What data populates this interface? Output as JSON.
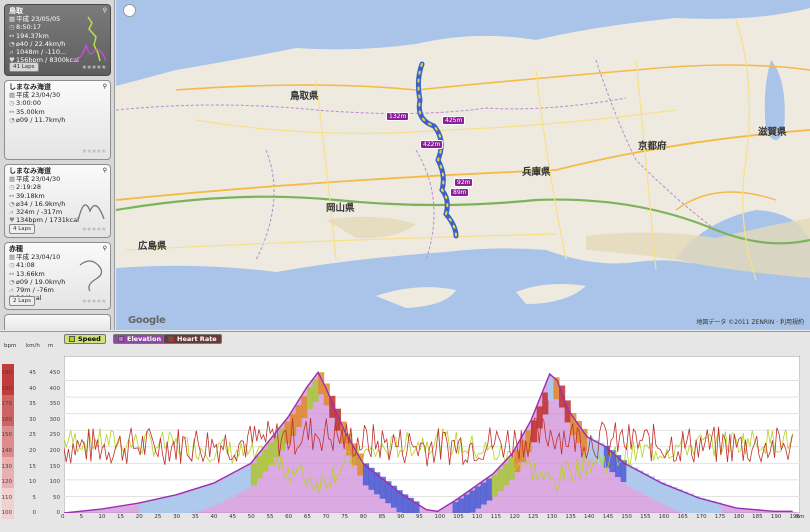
{
  "sidebar": {
    "cards": [
      {
        "title": "鳥取",
        "date": "平成 23/05/05",
        "time": "8:50:17",
        "distance": "194.37km",
        "speed": "⌀40 / 22.4km/h",
        "elevation": "1048m / -110...",
        "heart": "156bpm / 8300kcal",
        "laps": "41 Laps",
        "selected": true
      },
      {
        "title": "しまなみ海道",
        "date": "平成 23/04/30",
        "time": "3:00:00",
        "distance": "35.00km",
        "speed": "⌀09 / 11.7km/h"
      },
      {
        "title": "しまなみ海道",
        "date": "平成 23/04/30",
        "time": "2:19:28",
        "distance": "39.18km",
        "speed": "⌀34 / 16.9km/h",
        "elevation": "324m / -317m",
        "heart": "134bpm / 1731kcal",
        "laps": "4 Laps"
      },
      {
        "title": "赤穂",
        "date": "平成 23/04/10",
        "time": "41:08",
        "distance": "13.66km",
        "speed": "⌀09 / 19.0km/h",
        "elevation": "79m / -76m",
        "heart": "364kcal",
        "laps": "2 Laps"
      }
    ]
  },
  "map": {
    "prefectures": [
      "鳥取県",
      "岡山県",
      "兵庫県",
      "京都府",
      "広島県",
      "滋賀県"
    ],
    "markers": [
      "132m",
      "425m",
      "422m",
      "92m",
      "89m"
    ],
    "copyright": "©2011 ZENRIN · 利用規約",
    "logo": "Google",
    "zenrin_prefix": "地図データ"
  },
  "chart": {
    "legend": {
      "speed": "Speed",
      "elevation": "Elevation",
      "heart_rate": "Heart Rate"
    },
    "units": {
      "bpm": "bpm",
      "kmh": "km/h",
      "m": "m"
    },
    "bpm_ticks": [
      "190",
      "180",
      "170",
      "160",
      "150",
      "140",
      "130",
      "120",
      "110",
      "100"
    ],
    "kmh_ticks": [
      "45",
      "40",
      "35",
      "30",
      "25",
      "20",
      "15",
      "10",
      "5",
      "0"
    ],
    "m_ticks": [
      "450",
      "400",
      "350",
      "300",
      "250",
      "200",
      "150",
      "100",
      "50",
      "0"
    ],
    "km_unit": "km",
    "x_ticks": [
      "0",
      "5",
      "10",
      "15",
      "20",
      "25",
      "30",
      "35",
      "40",
      "45",
      "50",
      "55",
      "60",
      "65",
      "70",
      "75",
      "80",
      "85",
      "90",
      "95",
      "100",
      "105",
      "110",
      "115",
      "120",
      "125",
      "130",
      "135",
      "140",
      "145",
      "150",
      "155",
      "160",
      "165",
      "170",
      "175",
      "180",
      "185",
      "190",
      "195"
    ]
  },
  "chart_data": {
    "type": "area",
    "xlabel": "km",
    "xlim": [
      0,
      197
    ],
    "series": [
      {
        "name": "Elevation",
        "unit": "m",
        "ylim": [
          0,
          450
        ],
        "x": [
          0,
          10,
          20,
          30,
          40,
          50,
          55,
          60,
          65,
          68,
          70,
          75,
          80,
          90,
          97,
          100,
          105,
          110,
          115,
          120,
          125,
          130,
          132,
          135,
          140,
          145,
          150,
          160,
          170,
          180,
          190,
          195
        ],
        "values": [
          0,
          12,
          30,
          55,
          90,
          150,
          220,
          290,
          380,
          425,
          380,
          250,
          150,
          60,
          10,
          5,
          40,
          80,
          120,
          180,
          280,
          420,
          400,
          310,
          230,
          200,
          150,
          90,
          45,
          15,
          5,
          5
        ]
      },
      {
        "name": "Speed",
        "unit": "km/h",
        "ylim": [
          0,
          45
        ],
        "x": [
          0,
          195
        ],
        "values": [
          18,
          18
        ]
      },
      {
        "name": "Heart Rate",
        "unit": "bpm",
        "ylim": [
          100,
          190
        ],
        "x": [
          0,
          195
        ],
        "values": [
          150,
          150
        ]
      }
    ]
  },
  "colors": {
    "elevation": "#9a2fb0",
    "speed": "#b5d41a",
    "heart": "#c0302c",
    "route": "#3a63c9"
  }
}
